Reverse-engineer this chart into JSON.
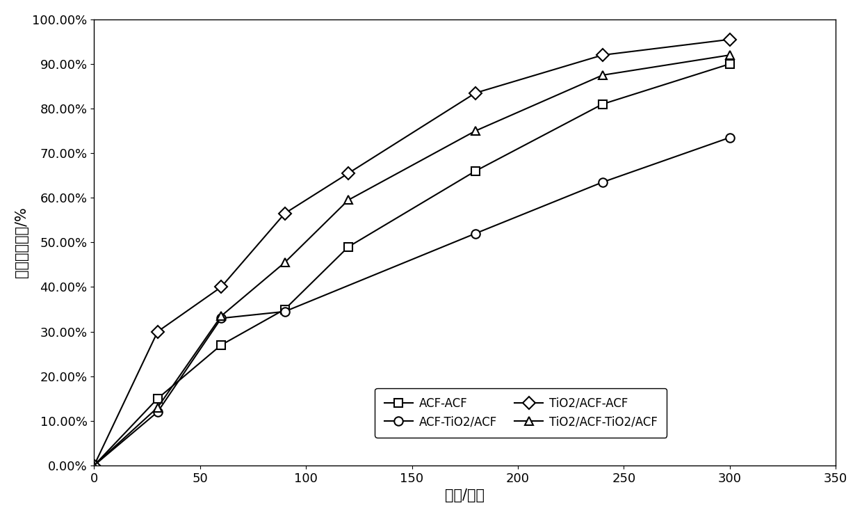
{
  "series": {
    "ACF-ACF": {
      "x": [
        0,
        30,
        60,
        90,
        120,
        180,
        240,
        300
      ],
      "y": [
        0.0,
        0.15,
        0.27,
        0.35,
        0.49,
        0.66,
        0.81,
        0.9
      ],
      "marker": "s",
      "label": "ACF-ACF"
    },
    "ACF-TiO2/ACF": {
      "x": [
        0,
        30,
        60,
        90,
        180,
        240,
        300
      ],
      "y": [
        0.0,
        0.12,
        0.33,
        0.345,
        0.52,
        0.635,
        0.735
      ],
      "marker": "o",
      "label": "ACF-TiO2/ACF"
    },
    "TiO2/ACF-ACF": {
      "x": [
        0,
        30,
        60,
        90,
        120,
        180,
        240,
        300
      ],
      "y": [
        0.0,
        0.3,
        0.4,
        0.565,
        0.655,
        0.835,
        0.92,
        0.955
      ],
      "marker": "D",
      "label": "TiO2/ACF-ACF"
    },
    "TiO2/ACF-TiO2/ACF": {
      "x": [
        0,
        30,
        60,
        90,
        120,
        180,
        240,
        300
      ],
      "y": [
        0.0,
        0.13,
        0.335,
        0.455,
        0.595,
        0.75,
        0.875,
        0.92
      ],
      "marker": "^",
      "label": "TiO2/ACF-TiO2/ACF"
    }
  },
  "series_order": [
    "ACF-ACF",
    "ACF-TiO2/ACF",
    "TiO2/ACF-ACF",
    "TiO2/ACF-TiO2/ACF"
  ],
  "xlabel": "时间/分钟",
  "ylabel": "铜离子去除率/%",
  "xlim": [
    0,
    350
  ],
  "ylim": [
    0.0,
    1.0
  ],
  "xticks": [
    0,
    50,
    100,
    150,
    200,
    250,
    300,
    350
  ],
  "yticks": [
    0.0,
    0.1,
    0.2,
    0.3,
    0.4,
    0.5,
    0.6,
    0.7,
    0.8,
    0.9,
    1.0
  ],
  "line_color": "#000000",
  "marker_fill": "white",
  "marker_size": 9,
  "line_width": 1.5,
  "font_size_label": 15,
  "font_size_tick": 13,
  "font_size_legend": 12
}
